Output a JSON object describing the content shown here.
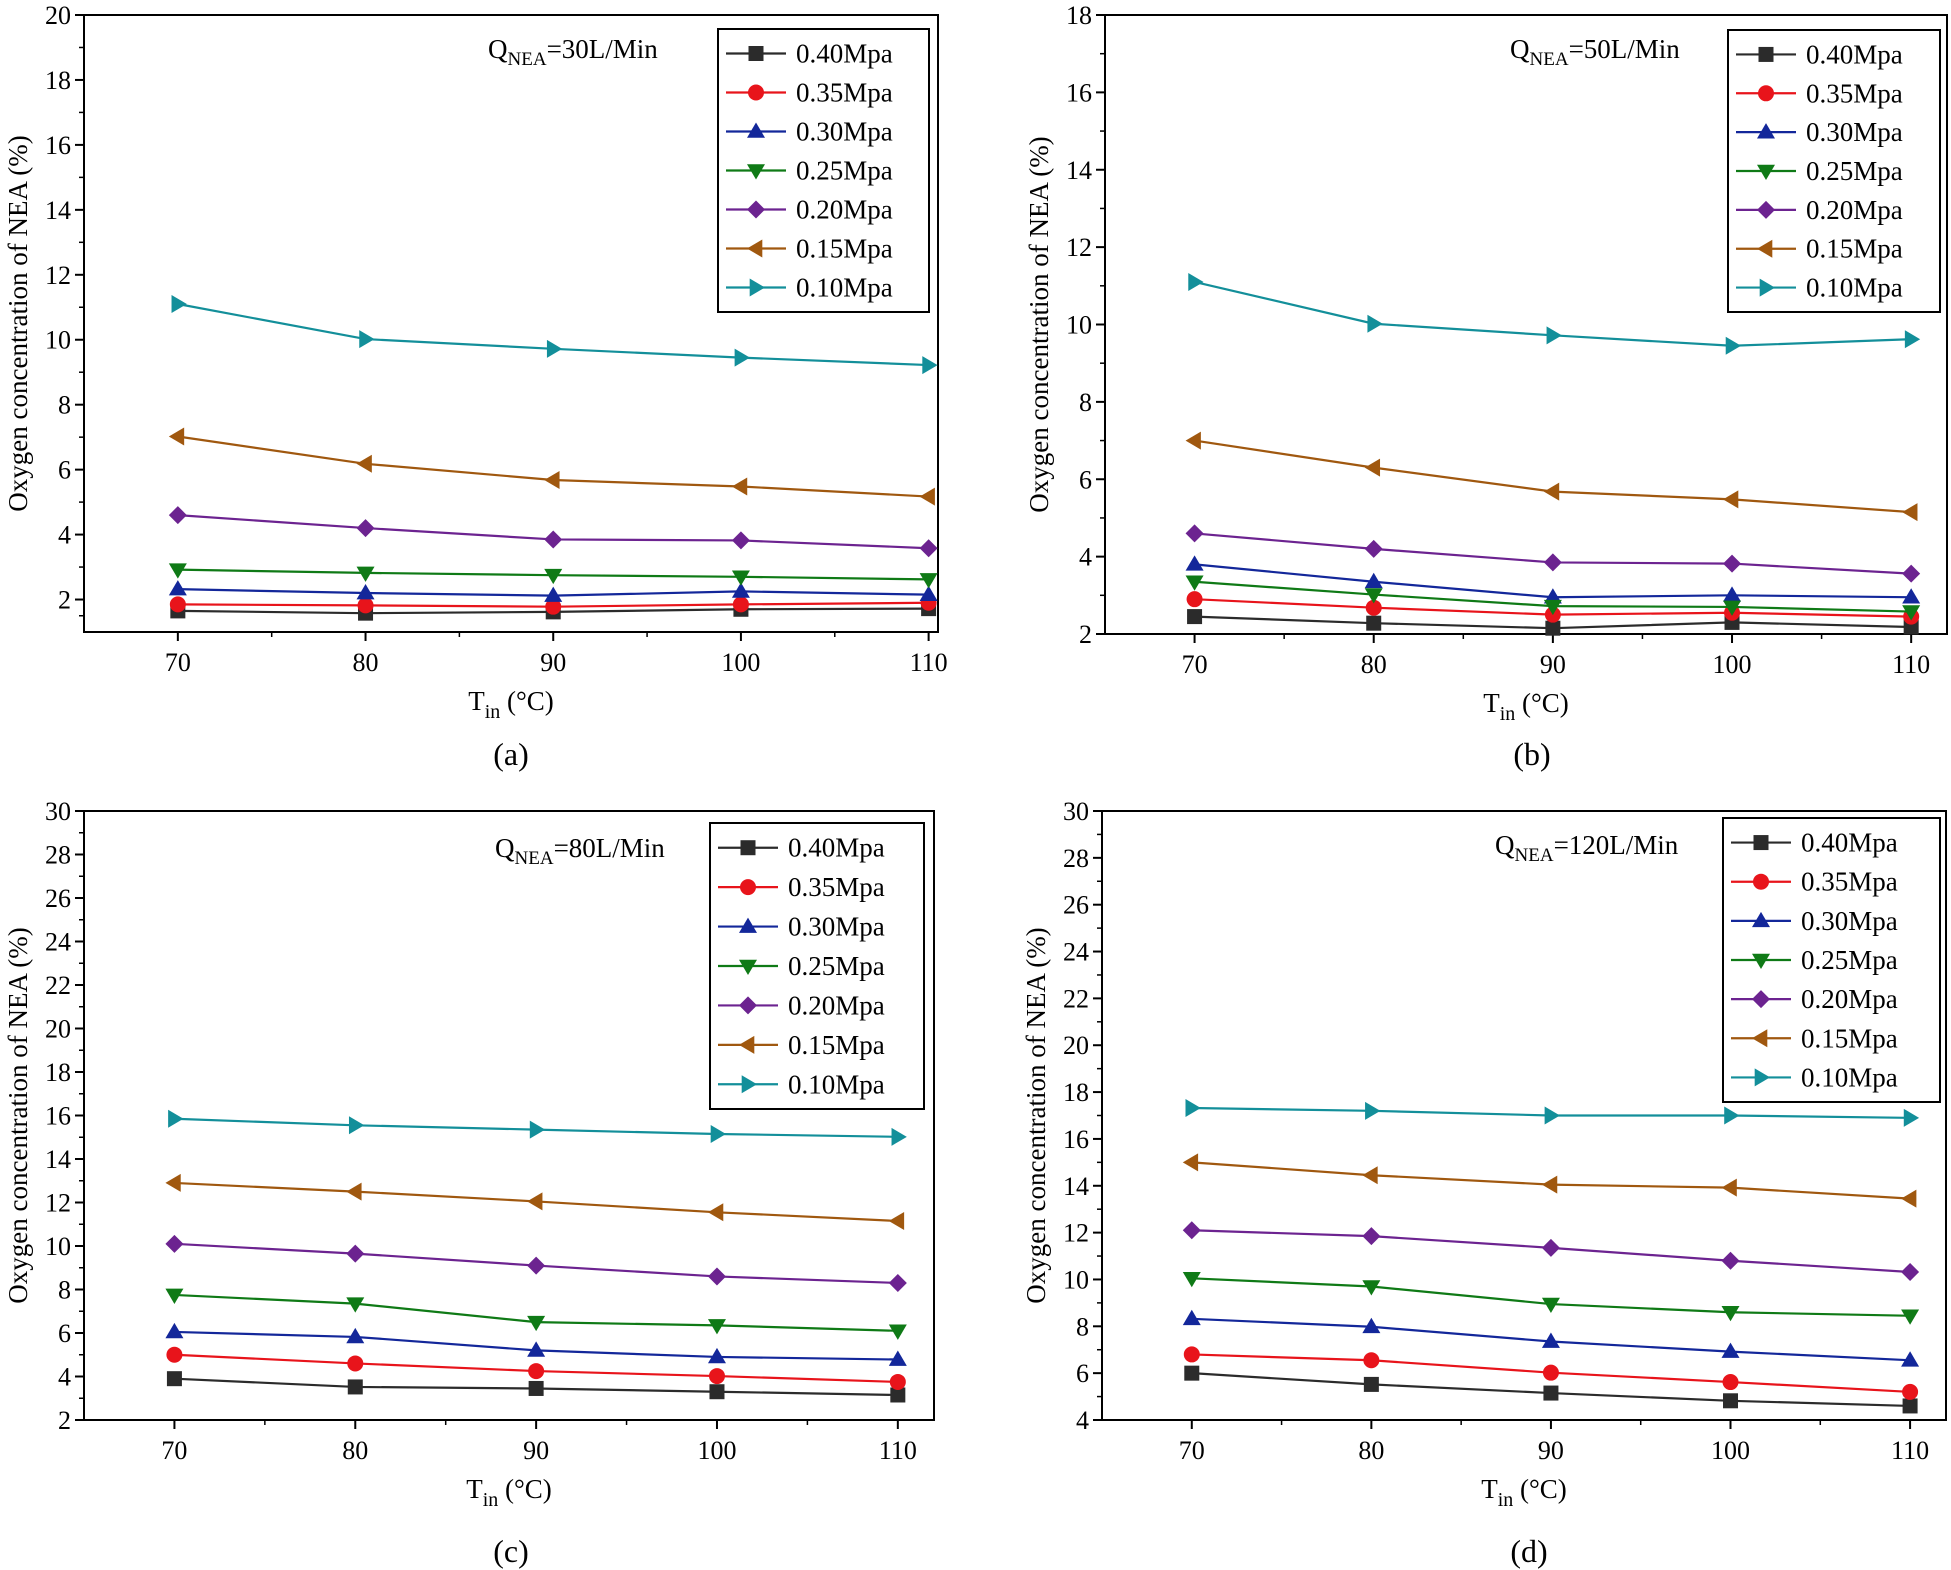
{
  "figure": {
    "x_axis_title_main": "T",
    "x_axis_title_sub": "in",
    "x_axis_title_unit": " (°C)",
    "y_axis_title": "Oxygen concentration of NEA (%)"
  },
  "colors": {
    "0.40Mpa": "#2b2b2b",
    "0.35Mpa": "#e8141b",
    "0.30Mpa": "#13279a",
    "0.25Mpa": "#0f7a16",
    "0.20Mpa": "#6c2390",
    "0.15Mpa": "#a0580f",
    "0.10Mpa": "#138f9a"
  },
  "chart_data": [
    {
      "type": "line",
      "caption": "(a)",
      "annotation": {
        "main": "Q",
        "sub": "NEA",
        "rest": "=30L/Min"
      },
      "xlabel": "Tin (°C)",
      "ylabel": "Oxygen concentration of NEA (%)",
      "xlim": [
        65,
        110.5
      ],
      "ylim": [
        1,
        20
      ],
      "x_ticks": [
        70,
        80,
        90,
        100,
        110
      ],
      "y_ticks": [
        2,
        4,
        6,
        8,
        10,
        12,
        14,
        16,
        18,
        20
      ],
      "x": [
        70,
        80,
        90,
        100,
        110
      ],
      "legend_position": "top-right",
      "series": [
        {
          "name": "0.40Mpa",
          "marker": "square",
          "values": [
            1.65,
            1.58,
            1.62,
            1.7,
            1.72
          ]
        },
        {
          "name": "0.35Mpa",
          "marker": "circle",
          "values": [
            1.85,
            1.82,
            1.78,
            1.85,
            1.9
          ]
        },
        {
          "name": "0.30Mpa",
          "marker": "triangle-up",
          "values": [
            2.32,
            2.2,
            2.12,
            2.25,
            2.15
          ]
        },
        {
          "name": "0.25Mpa",
          "marker": "triangle-down",
          "values": [
            2.92,
            2.82,
            2.75,
            2.7,
            2.62
          ]
        },
        {
          "name": "0.20Mpa",
          "marker": "diamond",
          "values": [
            4.6,
            4.2,
            3.85,
            3.82,
            3.58
          ]
        },
        {
          "name": "0.15Mpa",
          "marker": "triangle-left",
          "values": [
            7.02,
            6.18,
            5.68,
            5.48,
            5.17
          ]
        },
        {
          "name": "0.10Mpa",
          "marker": "triangle-right",
          "values": [
            11.1,
            10.02,
            9.72,
            9.45,
            9.22
          ]
        }
      ]
    },
    {
      "type": "line",
      "caption": "(b)",
      "annotation": {
        "main": "Q",
        "sub": "NEA",
        "rest": "=50L/Min"
      },
      "xlabel": "Tin (°C)",
      "ylabel": "Oxygen concentration of NEA (%)",
      "xlim": [
        65,
        112
      ],
      "ylim": [
        2,
        18
      ],
      "x_ticks": [
        70,
        80,
        90,
        100,
        110
      ],
      "y_ticks": [
        2,
        4,
        6,
        8,
        10,
        12,
        14,
        16,
        18
      ],
      "x": [
        70,
        80,
        90,
        100,
        110
      ],
      "legend_position": "top-right",
      "series": [
        {
          "name": "0.40Mpa",
          "marker": "square",
          "values": [
            2.45,
            2.28,
            2.15,
            2.3,
            2.18
          ]
        },
        {
          "name": "0.35Mpa",
          "marker": "circle",
          "values": [
            2.9,
            2.68,
            2.5,
            2.55,
            2.45
          ]
        },
        {
          "name": "0.30Mpa",
          "marker": "triangle-up",
          "values": [
            3.8,
            3.35,
            2.95,
            3.0,
            2.95
          ]
        },
        {
          "name": "0.25Mpa",
          "marker": "triangle-down",
          "values": [
            3.35,
            3.02,
            2.72,
            2.7,
            2.58
          ]
        },
        {
          "name": "0.20Mpa",
          "marker": "diamond",
          "values": [
            4.6,
            4.2,
            3.85,
            3.82,
            3.56
          ]
        },
        {
          "name": "0.15Mpa",
          "marker": "triangle-left",
          "values": [
            7.0,
            6.3,
            5.68,
            5.48,
            5.15
          ]
        },
        {
          "name": "0.10Mpa",
          "marker": "triangle-right",
          "values": [
            11.1,
            10.02,
            9.72,
            9.45,
            9.62
          ]
        }
      ]
    },
    {
      "type": "line",
      "caption": "(c)",
      "annotation": {
        "main": "Q",
        "sub": "NEA",
        "rest": "=80L/Min"
      },
      "xlabel": "Tin (°C)",
      "ylabel": "Oxygen concentration of NEA (%)",
      "xlim": [
        65,
        112
      ],
      "ylim": [
        2,
        30
      ],
      "x_ticks": [
        70,
        80,
        90,
        100,
        110
      ],
      "y_ticks": [
        2,
        4,
        6,
        8,
        10,
        12,
        14,
        16,
        18,
        20,
        22,
        24,
        26,
        28,
        30
      ],
      "x": [
        70,
        80,
        90,
        100,
        110
      ],
      "legend_position": "top-right",
      "series": [
        {
          "name": "0.40Mpa",
          "marker": "square",
          "values": [
            3.9,
            3.52,
            3.45,
            3.3,
            3.15
          ]
        },
        {
          "name": "0.35Mpa",
          "marker": "circle",
          "values": [
            5.0,
            4.6,
            4.25,
            4.02,
            3.75
          ]
        },
        {
          "name": "0.30Mpa",
          "marker": "triangle-up",
          "values": [
            6.05,
            5.82,
            5.2,
            4.9,
            4.78
          ]
        },
        {
          "name": "0.25Mpa",
          "marker": "triangle-down",
          "values": [
            7.75,
            7.35,
            6.5,
            6.35,
            6.1
          ]
        },
        {
          "name": "0.20Mpa",
          "marker": "diamond",
          "values": [
            10.1,
            9.65,
            9.1,
            8.6,
            8.3
          ]
        },
        {
          "name": "0.15Mpa",
          "marker": "triangle-left",
          "values": [
            12.9,
            12.5,
            12.05,
            11.55,
            11.15
          ]
        },
        {
          "name": "0.10Mpa",
          "marker": "triangle-right",
          "values": [
            15.85,
            15.55,
            15.35,
            15.15,
            15.02
          ]
        }
      ]
    },
    {
      "type": "line",
      "caption": "(d)",
      "annotation": {
        "main": "Q",
        "sub": "NEA",
        "rest": "=120L/Min"
      },
      "xlabel": "Tin (°C)",
      "ylabel": "Oxygen concentration of NEA (%)",
      "xlim": [
        65,
        112
      ],
      "ylim": [
        4,
        30
      ],
      "x_ticks": [
        70,
        80,
        90,
        100,
        110
      ],
      "y_ticks": [
        4,
        6,
        8,
        10,
        12,
        14,
        16,
        18,
        20,
        22,
        24,
        26,
        28,
        30
      ],
      "x": [
        70,
        80,
        90,
        100,
        110
      ],
      "legend_position": "top-right",
      "series": [
        {
          "name": "0.40Mpa",
          "marker": "square",
          "values": [
            6.0,
            5.52,
            5.15,
            4.82,
            4.6
          ]
        },
        {
          "name": "0.35Mpa",
          "marker": "circle",
          "values": [
            6.8,
            6.55,
            6.02,
            5.62,
            5.2
          ]
        },
        {
          "name": "0.30Mpa",
          "marker": "triangle-up",
          "values": [
            8.32,
            7.98,
            7.35,
            6.92,
            6.55
          ]
        },
        {
          "name": "0.25Mpa",
          "marker": "triangle-down",
          "values": [
            10.05,
            9.7,
            8.95,
            8.6,
            8.45
          ]
        },
        {
          "name": "0.20Mpa",
          "marker": "diamond",
          "values": [
            12.1,
            11.85,
            11.35,
            10.8,
            10.32
          ]
        },
        {
          "name": "0.15Mpa",
          "marker": "triangle-left",
          "values": [
            15.0,
            14.45,
            14.05,
            13.92,
            13.45
          ]
        },
        {
          "name": "0.10Mpa",
          "marker": "triangle-right",
          "values": [
            17.32,
            17.2,
            17.0,
            17.0,
            16.9
          ]
        }
      ]
    }
  ]
}
